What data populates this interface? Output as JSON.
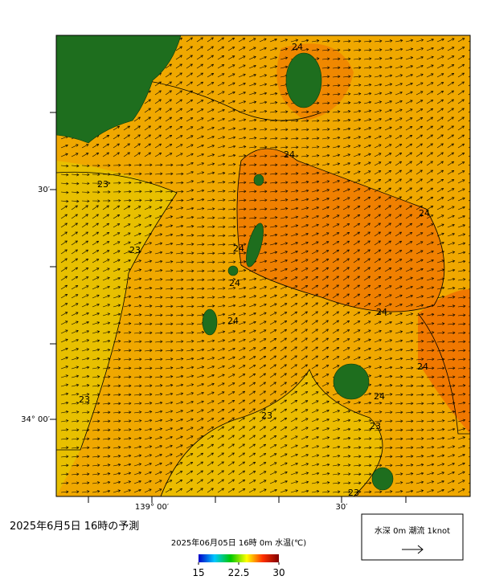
{
  "map": {
    "lat_labels": [
      "30′",
      "34° 00′"
    ],
    "lon_labels": [
      "139° 00′",
      "30′"
    ],
    "contour_labels": [
      "24",
      "24",
      "24",
      "24",
      "24",
      "24",
      "24",
      "24",
      "24",
      "23",
      "23",
      "23",
      "23",
      "23",
      "23"
    ]
  },
  "caption": "2025年6月5日 16時の予測",
  "colorbar": {
    "title": "2025年06月05日 16時 0m 水温(℃)",
    "ticks": [
      15,
      22.5,
      30
    ]
  },
  "legend": {
    "text": "水深 0m 潮流 1knot"
  }
}
